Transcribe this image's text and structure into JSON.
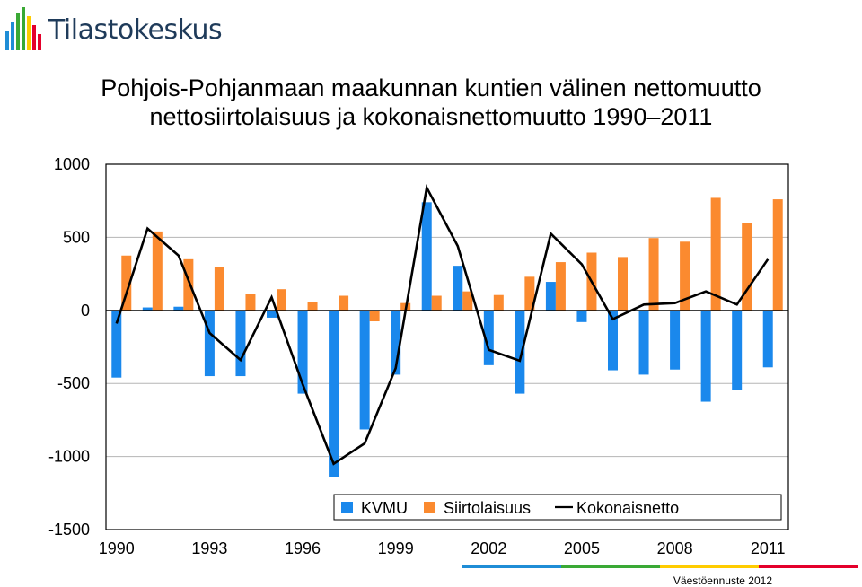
{
  "brand": {
    "name": "Tilastokeskus",
    "icon": "tilastokeskus-logo-icon",
    "colors": [
      "#1f8dd6",
      "#3aa935",
      "#ffcc00",
      "#e4002b"
    ]
  },
  "title": {
    "line1": "Pohjois-Pohjanmaan maakunnan kuntien välinen nettomuutto",
    "line2": "nettosiirtolaisuus ja kokonaisnettomuutto 1990–2011"
  },
  "footer": "Väestöennuste 2012",
  "chart_data": {
    "type": "bar",
    "categories": [
      "1990",
      "1991",
      "1992",
      "1993",
      "1994",
      "1995",
      "1996",
      "1997",
      "1998",
      "1999",
      "2000",
      "2001",
      "2002",
      "2003",
      "2004",
      "2005",
      "2006",
      "2007",
      "2008",
      "2009",
      "2010",
      "2011"
    ],
    "x_tick_labels": [
      "1990",
      "1993",
      "1996",
      "1999",
      "2002",
      "2005",
      "2008",
      "2011"
    ],
    "ylim": [
      -1500,
      1000
    ],
    "y_ticks": [
      1000,
      500,
      0,
      -500,
      -1000,
      -1500
    ],
    "grid": true,
    "legend_position": "bottom-right",
    "series": [
      {
        "name": "KVMU",
        "kind": "bar",
        "color": "#1a88ec",
        "values": [
          -460,
          20,
          25,
          -450,
          -450,
          -50,
          -570,
          -1140,
          -815,
          -440,
          740,
          305,
          -375,
          -570,
          195,
          -80,
          -410,
          -440,
          -405,
          -625,
          -545,
          -390
        ]
      },
      {
        "name": "Siirtolaisuus",
        "kind": "bar",
        "color": "#fb8a2f",
        "values": [
          375,
          540,
          350,
          295,
          115,
          145,
          55,
          100,
          -75,
          50,
          100,
          130,
          105,
          230,
          330,
          395,
          365,
          495,
          470,
          770,
          600,
          760
        ]
      },
      {
        "name": "Kokonaisnetto",
        "kind": "line",
        "color": "#000000",
        "values": [
          -90,
          560,
          375,
          -155,
          -340,
          90,
          -505,
          -1050,
          -910,
          -395,
          840,
          440,
          -270,
          -345,
          525,
          315,
          -60,
          40,
          50,
          130,
          40,
          350
        ]
      }
    ]
  }
}
